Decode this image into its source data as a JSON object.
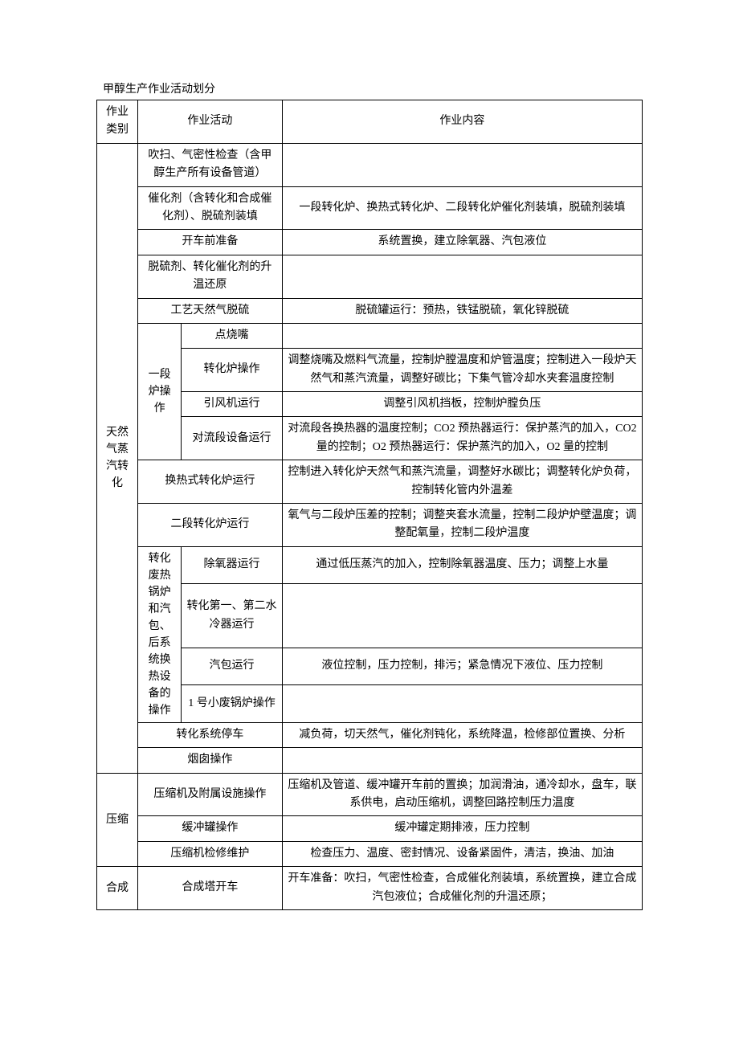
{
  "title": "甲醇生产作业活动划分",
  "header": {
    "c1": "作业类别",
    "c2": "作业活动",
    "c3": "作业内容"
  },
  "rows": {
    "cat1": "天然气蒸汽转化",
    "cat2": "压缩",
    "cat3": "合成",
    "sub_yiduan": "一段炉操作",
    "sub_zhuanhua": "转化废热锅炉和汽包、后系统换热设备的操作",
    "r1a": "吹扫、气密性检查（含甲醇生产所有设备管道）",
    "r1b": "",
    "r2a": "催化剂（含转化和合成催化剂）、脱硫剂装填",
    "r2b": "一段转化炉、换热式转化炉、二段转化炉催化剂装填，脱硫剂装填",
    "r3a": "开车前准备",
    "r3b": "系统置换，建立除氧器、汽包液位",
    "r4a": "脱硫剂、转化催化剂的升温还原",
    "r4b": "",
    "r5a": "工艺天然气脱硫",
    "r5b": "脱硫罐运行：预热，铁锰脱硫，氧化锌脱硫",
    "r6a": "点烧嘴",
    "r6b": "",
    "r7a": "转化炉操作",
    "r7b": "调整烧嘴及燃料气流量，控制炉膛温度和炉管温度；控制进入一段炉天然气和蒸汽流量，调整好碳比；下集气管冷却水夹套温度控制",
    "r8a": "引风机运行",
    "r8b": "调整引风机挡板，控制炉膛负压",
    "r9a": "对流段设备运行",
    "r9b": "对流段各换热器的温度控制；CO2 预热器运行：保护蒸汽的加入，CO2 量的控制；O2 预热器运行：保护蒸汽的加入，O2 量的控制",
    "r10a": "换热式转化炉运行",
    "r10b": "控制进入转化炉天然气和蒸汽流量，调整好水碳比；调整转化炉负荷，控制转化管内外温差",
    "r11a": "二段转化炉运行",
    "r11b": "氧气与二段炉压差的控制；调整夹套水流量，控制二段炉炉壁温度；调整配氧量，控制二段炉温度",
    "r12a": "除氧器运行",
    "r12b": "通过低压蒸汽的加入，控制除氧器温度、压力；调整上水量",
    "r13a": "转化第一、第二水冷器运行",
    "r13b": "",
    "r14a": "汽包运行",
    "r14b": "液位控制，压力控制，排污；紧急情况下液位、压力控制",
    "r15a": "1 号小废锅炉操作",
    "r15b": "",
    "r16a": "转化系统停车",
    "r16b": "减负荷，切天然气，催化剂钝化，系统降温，检修部位置换、分析",
    "r17a": "烟囱操作",
    "r17b": "",
    "r18a": "压缩机及附属设施操作",
    "r18b": "压缩机及管道、缓冲罐开车前的置换；加润滑油，通冷却水，盘车，联系供电，启动压缩机，调整回路控制压力温度",
    "r19a": "缓冲罐操作",
    "r19b": "缓冲罐定期排液，压力控制",
    "r20a": "压缩机检修维护",
    "r20b": "检查压力、温度、密封情况、设备紧固件，清洁，换油、加油",
    "r21a": "合成塔开车",
    "r21b": "开车准备：吹扫，气密性检查，合成催化剂装填，系统置换，建立合成汽包液位；合成催化剂的升温还原；"
  }
}
